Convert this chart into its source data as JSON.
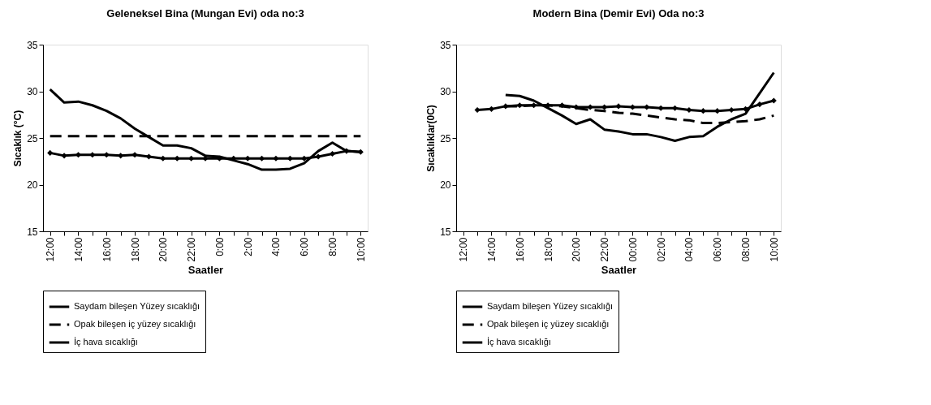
{
  "chart_data": [
    {
      "type": "line",
      "title": "Geleneksel Bina (Mungan Evi) oda no:3",
      "xlabel": "Saatler",
      "ylabel": "Sıcaklık (°C)",
      "categories": [
        "12:00",
        null,
        "14:00",
        null,
        "16:00",
        null,
        "18:00",
        null,
        "20:00",
        null,
        "22:00",
        null,
        "0:00",
        null,
        "2:00",
        null,
        "4:00",
        null,
        "6:00",
        null,
        "8:00",
        null,
        "10:00"
      ],
      "ylim": [
        15,
        35
      ],
      "yticks": [
        15,
        20,
        25,
        30,
        35
      ],
      "legend": "bottom",
      "series": [
        {
          "name": "Saydam bileşen Yüzey sıcaklığı",
          "color": "#000000",
          "line_style": "solid",
          "marker": "none",
          "values": [
            30.2,
            28.8,
            28.9,
            28.5,
            27.9,
            27.1,
            26.0,
            25.1,
            24.2,
            24.2,
            23.9,
            23.1,
            23.0,
            22.6,
            22.2,
            21.6,
            21.6,
            21.7,
            22.3,
            23.6,
            24.5,
            23.6,
            23.5
          ]
        },
        {
          "name": "Opak bileşen iç yüzey sıcaklığı",
          "color": "#000000",
          "line_style": "dashed",
          "marker": "none",
          "values": [
            25.2,
            25.2,
            25.2,
            25.2,
            25.2,
            25.2,
            25.2,
            25.2,
            25.2,
            25.2,
            25.2,
            25.2,
            25.2,
            25.2,
            25.2,
            25.2,
            25.2,
            25.2,
            25.2,
            25.2,
            25.2,
            25.2,
            25.2
          ]
        },
        {
          "name": "İç hava sıcaklığı",
          "color": "#000000",
          "line_style": "solid",
          "marker": "diamond",
          "values": [
            23.4,
            23.1,
            23.2,
            23.2,
            23.2,
            23.1,
            23.2,
            23.0,
            22.8,
            22.8,
            22.8,
            22.8,
            22.8,
            22.8,
            22.8,
            22.8,
            22.8,
            22.8,
            22.8,
            23.0,
            23.3,
            23.6,
            23.5
          ]
        }
      ]
    },
    {
      "type": "line",
      "title": "Modern Bina (Demir Evi) Oda no:3",
      "xlabel": "Saatler",
      "ylabel": "Sıcaklıklar(0C)",
      "categories": [
        "12:00",
        null,
        "14:00",
        null,
        "16:00",
        null,
        "18:00",
        null,
        "20:00",
        null,
        "22:00",
        null,
        "00:00",
        null,
        "02:00",
        null,
        "04:00",
        null,
        "06:00",
        null,
        "08:00",
        null,
        "10:00"
      ],
      "ylim": [
        15,
        35
      ],
      "yticks": [
        15,
        20,
        25,
        30,
        35
      ],
      "legend": "bottom",
      "series": [
        {
          "name": "Saydam bileşen Yüzey sıcaklığı",
          "color": "#000000",
          "line_style": "solid",
          "marker": "none",
          "values": [
            null,
            null,
            null,
            29.6,
            29.5,
            29.0,
            28.2,
            27.4,
            26.5,
            27.0,
            25.9,
            25.7,
            25.4,
            25.4,
            25.1,
            24.7,
            25.1,
            25.2,
            26.2,
            27.0,
            27.6,
            29.8,
            32.0
          ]
        },
        {
          "name": "Opak bileşen iç yüzey sıcaklığı",
          "color": "#000000",
          "line_style": "dashed",
          "marker": "none",
          "values": [
            null,
            null,
            null,
            28.4,
            28.4,
            28.5,
            28.5,
            28.4,
            28.2,
            28.0,
            27.9,
            27.7,
            27.6,
            27.4,
            27.2,
            27.0,
            26.9,
            26.6,
            26.6,
            26.7,
            26.8,
            27.0,
            27.4
          ]
        },
        {
          "name": "İç hava sıcaklığı",
          "color": "#000000",
          "line_style": "solid",
          "marker": "diamond",
          "values": [
            null,
            28.0,
            28.1,
            28.4,
            28.5,
            28.5,
            28.5,
            28.5,
            28.3,
            28.3,
            28.3,
            28.4,
            28.3,
            28.3,
            28.2,
            28.2,
            28.0,
            27.9,
            27.9,
            28.0,
            28.1,
            28.6,
            29.0
          ]
        }
      ]
    }
  ]
}
